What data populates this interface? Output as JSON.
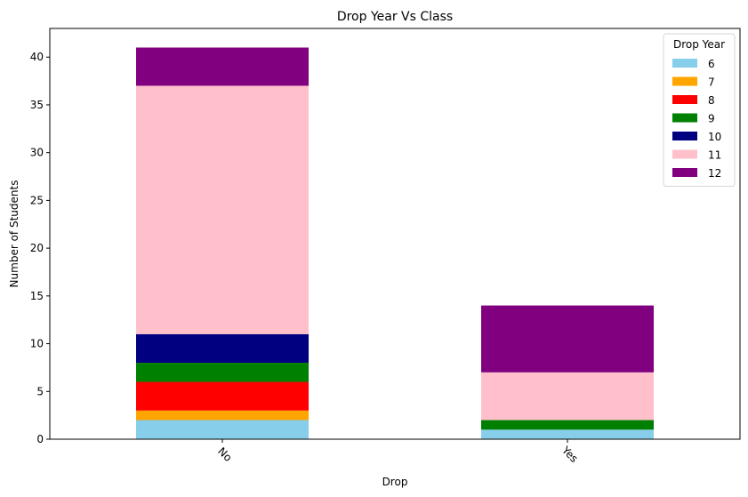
{
  "chart_data": {
    "type": "bar",
    "stacked": true,
    "title": "Drop Year Vs Class",
    "xlabel": "Drop",
    "ylabel": "Number of Students",
    "categories": [
      "No",
      "Yes"
    ],
    "ylim": [
      0,
      43
    ],
    "yticks": [
      0,
      5,
      10,
      15,
      20,
      25,
      30,
      35,
      40
    ],
    "grid": false,
    "legend": {
      "title": "Drop Year",
      "position": "top-right"
    },
    "series": [
      {
        "name": "6",
        "color": "#87ceeb",
        "values": [
          2,
          1
        ]
      },
      {
        "name": "7",
        "color": "#ffa500",
        "values": [
          1,
          0
        ]
      },
      {
        "name": "8",
        "color": "#ff0000",
        "values": [
          3,
          0
        ]
      },
      {
        "name": "9",
        "color": "#008000",
        "values": [
          2,
          1
        ]
      },
      {
        "name": "10",
        "color": "#000080",
        "values": [
          3,
          0
        ]
      },
      {
        "name": "11",
        "color": "#ffc0cb",
        "values": [
          26,
          5
        ]
      },
      {
        "name": "12",
        "color": "#800080",
        "values": [
          4,
          7
        ]
      }
    ]
  }
}
